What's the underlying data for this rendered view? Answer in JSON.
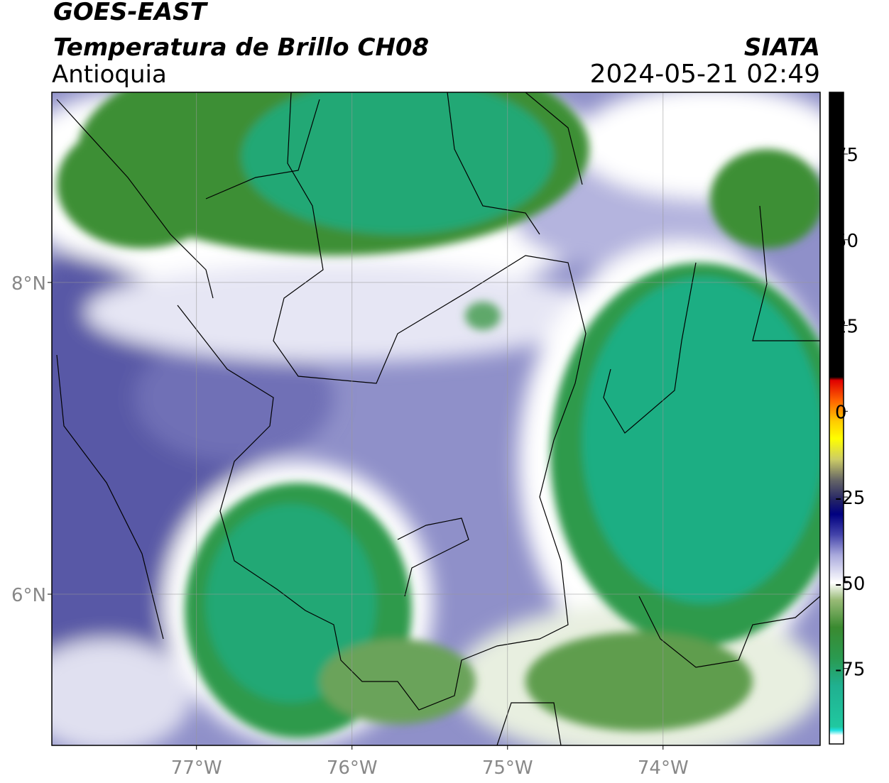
{
  "header": {
    "title": "GOES-EAST",
    "subtitle": "Temperatura de Brillo CH08",
    "region": "Antioquia",
    "source": "SIATA",
    "datetime": "2024-05-21 02:49"
  },
  "map": {
    "xlim": [
      -77.93,
      -72.99
    ],
    "ylim": [
      5.03,
      9.22
    ],
    "xticks": [
      {
        "value": -77,
        "label": "77°W"
      },
      {
        "value": -76,
        "label": "76°W"
      },
      {
        "value": -75,
        "label": "75°W"
      },
      {
        "value": -74,
        "label": "74°W"
      }
    ],
    "yticks": [
      {
        "value": 8,
        "label": "8°N"
      },
      {
        "value": 6,
        "label": "6°N"
      }
    ],
    "grid": true
  },
  "colorbar": {
    "lim": [
      -97,
      93
    ],
    "ticks": [
      75,
      50,
      25,
      0,
      -25,
      -50,
      -75
    ],
    "stops": [
      [
        93,
        "#000000"
      ],
      [
        10,
        "#000000"
      ],
      [
        9,
        "#e00000"
      ],
      [
        3,
        "#ff6600"
      ],
      [
        -3,
        "#ffcc00"
      ],
      [
        -8,
        "#ffff00"
      ],
      [
        -14,
        "#cccc66"
      ],
      [
        -20,
        "#666666"
      ],
      [
        -26,
        "#222266"
      ],
      [
        -30,
        "#000080"
      ],
      [
        -36,
        "#4444aa"
      ],
      [
        -42,
        "#aaaadd"
      ],
      [
        -50,
        "#ffffff"
      ],
      [
        -55,
        "#99bb77"
      ],
      [
        -63,
        "#3a8a30"
      ],
      [
        -72,
        "#2a9a50"
      ],
      [
        -80,
        "#20b090"
      ],
      [
        -92,
        "#20c8a0"
      ],
      [
        -93,
        "#20e0e0"
      ],
      [
        -94.5,
        "#ffffff"
      ],
      [
        -97,
        "#ffffff"
      ]
    ]
  }
}
